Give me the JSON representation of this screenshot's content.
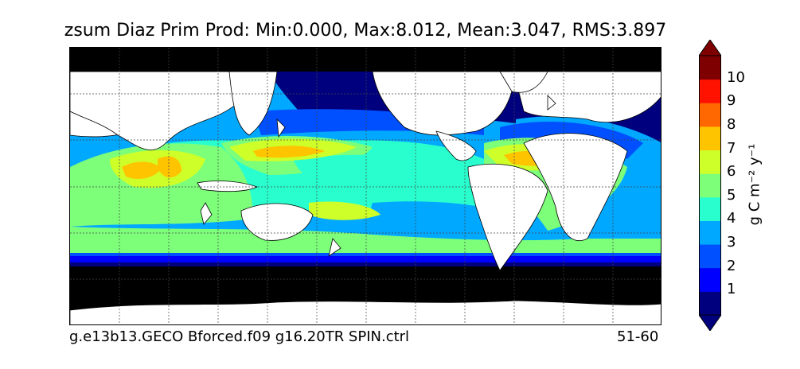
{
  "title": "zsum Diaz Prim Prod: Min:0.000, Max:8.012, Mean:3.047, RMS:3.897",
  "footer": {
    "run_name": "g.e13b13.GECO Bforced.f09 g16.20TR SPIN.ctrl",
    "years": "51-60"
  },
  "colorbar": {
    "label": "g C m⁻² y⁻¹",
    "ticks": [
      "1",
      "2",
      "3",
      "4",
      "5",
      "6",
      "7",
      "8",
      "9",
      "10"
    ],
    "levels": [
      {
        "value": "0-1",
        "color": "#00007f"
      },
      {
        "value": "1-2",
        "color": "#0000ff"
      },
      {
        "value": "2-3",
        "color": "#0050ff"
      },
      {
        "value": "3-4",
        "color": "#00a8ff"
      },
      {
        "value": "4-5",
        "color": "#29ffce"
      },
      {
        "value": "5-6",
        "color": "#7dff7a"
      },
      {
        "value": "6-7",
        "color": "#ceff29"
      },
      {
        "value": "7-8",
        "color": "#ffc400"
      },
      {
        "value": "8-9",
        "color": "#ff6800"
      },
      {
        "value": "9-10",
        "color": "#ff1300"
      },
      {
        "value": ">10",
        "color": "#7f0000"
      }
    ],
    "extend": "both"
  },
  "map": {
    "projection": "cylindrical",
    "gridlines": "dashed",
    "land_color": "#ffffff",
    "missing_color": "#000000"
  }
}
